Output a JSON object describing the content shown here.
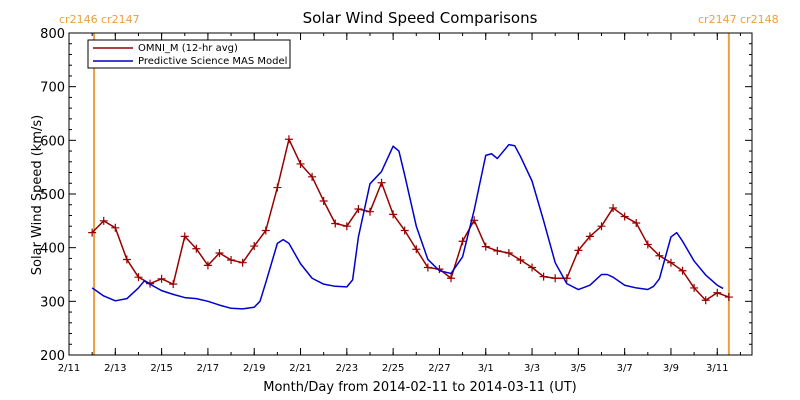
{
  "chart_data": {
    "type": "line",
    "title": "Solar Wind Speed Comparisons",
    "xlabel": "Month/Day from 2014-02-11 to 2014-03-11 (UT)",
    "ylabel": "Solar Wind Speed (km/s)",
    "xlim": [
      "2014-02-11T00:00",
      "2014-03-12T12:00"
    ],
    "ylim": [
      200,
      800
    ],
    "y_ticks": [
      200,
      300,
      400,
      500,
      600,
      700,
      800
    ],
    "x_ticks": [
      {
        "date": "2014-02-11",
        "label": "2/11"
      },
      {
        "date": "2014-02-13",
        "label": "2/13"
      },
      {
        "date": "2014-02-15",
        "label": "2/15"
      },
      {
        "date": "2014-02-17",
        "label": "2/17"
      },
      {
        "date": "2014-02-19",
        "label": "2/19"
      },
      {
        "date": "2014-02-21",
        "label": "2/21"
      },
      {
        "date": "2014-02-23",
        "label": "2/23"
      },
      {
        "date": "2014-02-25",
        "label": "2/25"
      },
      {
        "date": "2014-02-27",
        "label": "2/27"
      },
      {
        "date": "2014-03-01",
        "label": "3/1"
      },
      {
        "date": "2014-03-03",
        "label": "3/3"
      },
      {
        "date": "2014-03-05",
        "label": "3/5"
      },
      {
        "date": "2014-03-07",
        "label": "3/7"
      },
      {
        "date": "2014-03-09",
        "label": "3/9"
      },
      {
        "date": "2014-03-11",
        "label": "3/11"
      }
    ],
    "grid": false,
    "legend": "top-left",
    "carrington_markers": [
      {
        "date": "2014-02-12T02:00",
        "label": "cr2146 cr2147",
        "color": "#E8A040"
      },
      {
        "date": "2014-03-11T12:00",
        "label": "cr2147 cr2148",
        "color": "#E8A040"
      }
    ],
    "series": [
      {
        "name": "OMNI_M (12-hr avg)",
        "color": "#990000",
        "marker": "plus",
        "points": [
          [
            "2014-02-12T00:00",
            428
          ],
          [
            "2014-02-12T12:00",
            450
          ],
          [
            "2014-02-13T00:00",
            437
          ],
          [
            "2014-02-13T12:00",
            378
          ],
          [
            "2014-02-14T00:00",
            345
          ],
          [
            "2014-02-14T12:00",
            333
          ],
          [
            "2014-02-15T00:00",
            342
          ],
          [
            "2014-02-15T12:00",
            332
          ],
          [
            "2014-02-16T00:00",
            421
          ],
          [
            "2014-02-16T12:00",
            398
          ],
          [
            "2014-02-17T00:00",
            367
          ],
          [
            "2014-02-17T12:00",
            390
          ],
          [
            "2014-02-18T00:00",
            377
          ],
          [
            "2014-02-18T12:00",
            372
          ],
          [
            "2014-02-19T00:00",
            403
          ],
          [
            "2014-02-19T12:00",
            432
          ],
          [
            "2014-02-20T00:00",
            512
          ],
          [
            "2014-02-20T12:00",
            602
          ],
          [
            "2014-02-21T00:00",
            556
          ],
          [
            "2014-02-21T12:00",
            532
          ],
          [
            "2014-02-22T00:00",
            487
          ],
          [
            "2014-02-22T12:00",
            445
          ],
          [
            "2014-02-23T00:00",
            440
          ],
          [
            "2014-02-23T12:00",
            472
          ],
          [
            "2014-02-24T00:00",
            467
          ],
          [
            "2014-02-24T12:00",
            521
          ],
          [
            "2014-02-25T00:00",
            462
          ],
          [
            "2014-02-25T12:00",
            432
          ],
          [
            "2014-02-26T00:00",
            397
          ],
          [
            "2014-02-26T12:00",
            363
          ],
          [
            "2014-02-27T00:00",
            360
          ],
          [
            "2014-02-27T12:00",
            343
          ],
          [
            "2014-02-28T00:00",
            412
          ],
          [
            "2014-02-28T12:00",
            451
          ],
          [
            "2014-03-01T00:00",
            402
          ],
          [
            "2014-03-01T12:00",
            394
          ],
          [
            "2014-03-02T00:00",
            390
          ],
          [
            "2014-03-02T12:00",
            377
          ],
          [
            "2014-03-03T00:00",
            363
          ],
          [
            "2014-03-03T12:00",
            346
          ],
          [
            "2014-03-04T00:00",
            343
          ],
          [
            "2014-03-04T12:00",
            343
          ],
          [
            "2014-03-05T00:00",
            395
          ],
          [
            "2014-03-05T12:00",
            421
          ],
          [
            "2014-03-06T00:00",
            440
          ],
          [
            "2014-03-06T12:00",
            474
          ],
          [
            "2014-03-07T00:00",
            458
          ],
          [
            "2014-03-07T12:00",
            446
          ],
          [
            "2014-03-08T00:00",
            406
          ],
          [
            "2014-03-08T12:00",
            385
          ],
          [
            "2014-03-09T00:00",
            372
          ],
          [
            "2014-03-09T12:00",
            357
          ],
          [
            "2014-03-10T00:00",
            325
          ],
          [
            "2014-03-10T12:00",
            302
          ],
          [
            "2014-03-11T00:00",
            316
          ],
          [
            "2014-03-11T12:00",
            308
          ]
        ]
      },
      {
        "name": "Predictive Science MAS Model",
        "color": "#0000CC",
        "marker": "none",
        "points": [
          [
            "2014-02-12T00:00",
            325
          ],
          [
            "2014-02-12T12:00",
            310
          ],
          [
            "2014-02-13T00:00",
            301
          ],
          [
            "2014-02-13T12:00",
            305
          ],
          [
            "2014-02-14T00:00",
            325
          ],
          [
            "2014-02-14T06:00",
            338
          ],
          [
            "2014-02-14T12:00",
            332
          ],
          [
            "2014-02-15T00:00",
            320
          ],
          [
            "2014-02-15T12:00",
            313
          ],
          [
            "2014-02-16T00:00",
            307
          ],
          [
            "2014-02-16T12:00",
            305
          ],
          [
            "2014-02-17T00:00",
            300
          ],
          [
            "2014-02-17T12:00",
            293
          ],
          [
            "2014-02-18T00:00",
            287
          ],
          [
            "2014-02-18T12:00",
            286
          ],
          [
            "2014-02-19T00:00",
            289
          ],
          [
            "2014-02-19T06:00",
            300
          ],
          [
            "2014-02-19T12:00",
            335
          ],
          [
            "2014-02-20T00:00",
            408
          ],
          [
            "2014-02-20T06:00",
            415
          ],
          [
            "2014-02-20T12:00",
            408
          ],
          [
            "2014-02-21T00:00",
            370
          ],
          [
            "2014-02-21T12:00",
            343
          ],
          [
            "2014-02-22T00:00",
            332
          ],
          [
            "2014-02-22T12:00",
            328
          ],
          [
            "2014-02-23T00:00",
            327
          ],
          [
            "2014-02-23T06:00",
            340
          ],
          [
            "2014-02-23T12:00",
            420
          ],
          [
            "2014-02-24T00:00",
            519
          ],
          [
            "2014-02-24T12:00",
            542
          ],
          [
            "2014-02-25T00:00",
            589
          ],
          [
            "2014-02-25T06:00",
            580
          ],
          [
            "2014-02-25T12:00",
            535
          ],
          [
            "2014-02-26T00:00",
            440
          ],
          [
            "2014-02-26T12:00",
            378
          ],
          [
            "2014-02-27T00:00",
            357
          ],
          [
            "2014-02-27T12:00",
            352
          ],
          [
            "2014-02-28T00:00",
            383
          ],
          [
            "2014-02-28T12:00",
            470
          ],
          [
            "2014-03-01T00:00",
            572
          ],
          [
            "2014-03-01T06:00",
            575
          ],
          [
            "2014-03-01T12:00",
            566
          ],
          [
            "2014-03-02T00:00",
            592
          ],
          [
            "2014-03-02T06:00",
            590
          ],
          [
            "2014-03-02T12:00",
            570
          ],
          [
            "2014-03-03T00:00",
            524
          ],
          [
            "2014-03-03T12:00",
            450
          ],
          [
            "2014-03-04T00:00",
            372
          ],
          [
            "2014-03-04T12:00",
            333
          ],
          [
            "2014-03-05T00:00",
            322
          ],
          [
            "2014-03-05T12:00",
            330
          ],
          [
            "2014-03-06T00:00",
            350
          ],
          [
            "2014-03-06T06:00",
            350
          ],
          [
            "2014-03-06T12:00",
            345
          ],
          [
            "2014-03-07T00:00",
            330
          ],
          [
            "2014-03-07T12:00",
            325
          ],
          [
            "2014-03-08T00:00",
            322
          ],
          [
            "2014-03-08T06:00",
            328
          ],
          [
            "2014-03-08T12:00",
            342
          ],
          [
            "2014-03-09T00:00",
            420
          ],
          [
            "2014-03-09T06:00",
            428
          ],
          [
            "2014-03-09T12:00",
            412
          ],
          [
            "2014-03-10T00:00",
            375
          ],
          [
            "2014-03-10T12:00",
            349
          ],
          [
            "2014-03-11T00:00",
            330
          ],
          [
            "2014-03-11T06:00",
            324
          ]
        ]
      }
    ]
  }
}
